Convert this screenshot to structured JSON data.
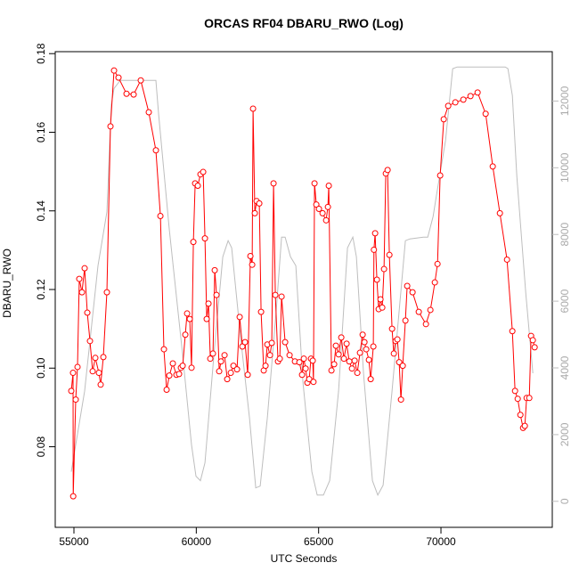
{
  "chart_data": {
    "type": "line",
    "title": "ORCAS RF04 DBARU_RWO (Log)",
    "xlabel": "UTC Seconds",
    "ylabel": "DBARU_RWO",
    "xlim": [
      54235,
      74550
    ],
    "ylim": [
      0.0595,
      0.1805
    ],
    "y2lim": [
      -780,
      13480
    ],
    "xticks": [
      55000,
      60000,
      65000,
      70000
    ],
    "yticks": [
      0.08,
      {
        "value": 0.1,
        "label": "0.10"
      },
      0.12,
      0.14,
      0.16,
      0.18
    ],
    "y2ticks": [
      0,
      2000,
      4000,
      6000,
      8000,
      10000,
      12000
    ],
    "series": [
      {
        "color": "#ff0000",
        "markers": true,
        "x": [
          54891,
          54963,
          54970,
          55073,
          55146,
          55218,
          55328,
          55437,
          55546,
          55655,
          55765,
          55874,
          56020,
          56092,
          56202,
          56347,
          56493,
          56639,
          56821,
          57149,
          57440,
          57731,
          58059,
          58350,
          58533,
          58678,
          58788,
          58897,
          59042,
          59188,
          59297,
          59370,
          59443,
          59552,
          59625,
          59734,
          59807,
          59880,
          59953,
          60062,
          60171,
          60281,
          60354,
          60426,
          60499,
          60572,
          60681,
          60754,
          60827,
          60936,
          61009,
          61155,
          61264,
          61410,
          61519,
          61665,
          61774,
          61883,
          61992,
          62102,
          62211,
          62284,
          62320,
          62393,
          62466,
          62575,
          62648,
          62757,
          62830,
          62903,
          63012,
          63085,
          63158,
          63231,
          63340,
          63413,
          63486,
          63631,
          63813,
          64032,
          64214,
          64323,
          64396,
          64469,
          64542,
          64615,
          64688,
          64760,
          64790,
          64833,
          64906,
          65015,
          65161,
          65307,
          65380,
          65416,
          65525,
          65634,
          65707,
          65817,
          65926,
          66035,
          66144,
          66254,
          66363,
          66472,
          66581,
          66691,
          66800,
          66873,
          66946,
          67055,
          67128,
          67237,
          67260,
          67310,
          67383,
          67455,
          67528,
          67601,
          67674,
          67747,
          67820,
          67893,
          68002,
          68075,
          68147,
          68220,
          68293,
          68366,
          68439,
          68548,
          68621,
          68839,
          69094,
          69386,
          69568,
          69750,
          69859,
          69968,
          70114,
          70296,
          70588,
          70915,
          71207,
          71498,
          71826,
          72117,
          72409,
          72700,
          72918,
          73028,
          73137,
          73246,
          73356,
          73428,
          73501,
          73610,
          73683,
          73756,
          73829
        ],
        "values": [
          0.0942,
          0.0988,
          0.0674,
          0.092,
          0.1003,
          0.1227,
          0.1193,
          0.1254,
          0.1141,
          0.1069,
          0.0992,
          0.1026,
          0.0988,
          0.0958,
          0.1028,
          0.1193,
          0.1615,
          0.1757,
          0.1739,
          0.1698,
          0.1696,
          0.1732,
          0.1651,
          0.1554,
          0.1387,
          0.1048,
          0.0945,
          0.0981,
          0.1012,
          0.0983,
          0.0985,
          0.1001,
          0.1006,
          0.1085,
          0.1139,
          0.1125,
          0.1001,
          0.1321,
          0.147,
          0.1464,
          0.1493,
          0.1499,
          0.133,
          0.1125,
          0.1164,
          0.1024,
          0.1037,
          0.1249,
          0.1186,
          0.0992,
          0.1017,
          0.1033,
          0.0972,
          0.0988,
          0.1006,
          0.0997,
          0.113,
          0.1055,
          0.1066,
          0.0983,
          0.1285,
          0.1263,
          0.166,
          0.1394,
          0.1425,
          0.1419,
          0.1143,
          0.0994,
          0.1006,
          0.106,
          0.1033,
          0.1064,
          0.147,
          0.1186,
          0.1017,
          0.1024,
          0.1182,
          0.1066,
          0.1033,
          0.1017,
          0.1015,
          0.0983,
          0.1024,
          0.0999,
          0.0963,
          0.0972,
          0.1024,
          0.1019,
          0.0965,
          0.147,
          0.1416,
          0.1405,
          0.1394,
          0.1376,
          0.141,
          0.1464,
          0.0994,
          0.101,
          0.1057,
          0.1035,
          0.1078,
          0.1024,
          0.1062,
          0.1017,
          0.0999,
          0.1019,
          0.0988,
          0.1039,
          0.1085,
          0.1066,
          0.1048,
          0.1021,
          0.0972,
          0.1055,
          0.1301,
          0.1343,
          0.1225,
          0.115,
          0.1175,
          0.1154,
          0.1252,
          0.1495,
          0.1504,
          0.1288,
          0.11,
          0.1037,
          0.1069,
          0.1073,
          0.1015,
          0.092,
          0.1006,
          0.1121,
          0.1209,
          0.1193,
          0.1143,
          0.1112,
          0.1148,
          0.1218,
          0.1265,
          0.149,
          0.1633,
          0.1667,
          0.1676,
          0.1683,
          0.1692,
          0.1701,
          0.1647,
          0.1513,
          0.1394,
          0.1276,
          0.1094,
          0.0942,
          0.0922,
          0.0881,
          0.0848,
          0.0853,
          0.0924,
          0.0924,
          0.1082,
          0.1071,
          0.1053
        ]
      },
      {
        "color": "#bebebe",
        "axis": "y2",
        "markers": false,
        "x": [
          54891,
          55437,
          55983,
          56347,
          56529,
          56639,
          56894,
          57440,
          58350,
          58459,
          58897,
          59443,
          59807,
          59989,
          60171,
          60354,
          60718,
          61082,
          61301,
          61447,
          61811,
          62175,
          62430,
          62611,
          62903,
          63267,
          63486,
          63631,
          63850,
          64068,
          64360,
          64724,
          64942,
          65197,
          65452,
          65817,
          66181,
          66399,
          66545,
          66836,
          67201,
          67419,
          67638,
          68002,
          68548,
          68731,
          69277,
          69459,
          69677,
          69823,
          70187,
          70478,
          70660,
          72627,
          72736,
          72918,
          73100,
          73465,
          73756
        ],
        "values": [
          886,
          3303,
          7062,
          8672,
          11895,
          12378,
          12620,
          12620,
          12620,
          11626,
          8136,
          4377,
          1692,
          752,
          618,
          1155,
          4377,
          7330,
          7813,
          7598,
          4913,
          2497,
          403,
          456,
          2497,
          5719,
          7921,
          7921,
          7330,
          7062,
          3571,
          886,
          188,
          188,
          618,
          3303,
          7598,
          7921,
          7330,
          3840,
          618,
          188,
          483,
          3303,
          7813,
          7867,
          7921,
          7921,
          8538,
          9210,
          10820,
          12969,
          13022,
          13022,
          12969,
          12163,
          9747,
          6256,
          3840
        ]
      }
    ]
  }
}
